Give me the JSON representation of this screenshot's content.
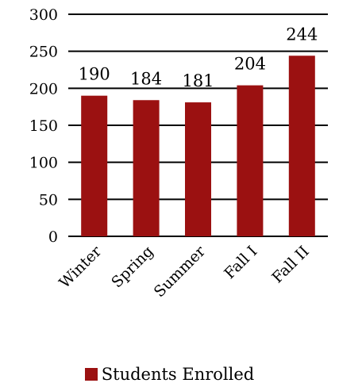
{
  "colors": {
    "bar": "#9b1111",
    "grid": "#000000",
    "text": "#000000",
    "background": "#ffffff"
  },
  "chart_data": {
    "type": "bar",
    "title": "",
    "xlabel": "",
    "ylabel": "",
    "categories": [
      "Winter",
      "Spring",
      "Summer",
      "Fall I",
      "Fall II"
    ],
    "series": [
      {
        "name": "Students Enrolled",
        "values": [
          190,
          184,
          181,
          204,
          244
        ]
      }
    ],
    "data_labels": [
      "190",
      "184",
      "181",
      "204",
      "244"
    ],
    "ylim": [
      0,
      300
    ],
    "yticks": [
      0,
      50,
      100,
      150,
      200,
      250,
      300
    ],
    "ytick_labels": [
      "0",
      "50",
      "100",
      "150",
      "200",
      "250",
      "300"
    ],
    "grid": true,
    "legend_position": "bottom"
  }
}
